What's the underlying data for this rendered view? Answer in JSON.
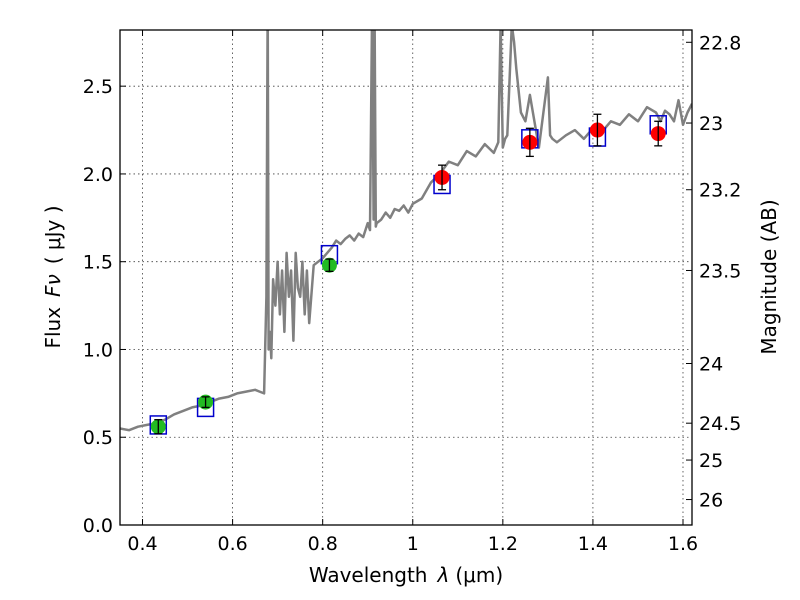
{
  "chart_data": {
    "type": "scatter",
    "title": "",
    "xlabel": "Wavelength",
    "xlabel_symbol": "λ",
    "xlabel_units": "(μm)",
    "ylabel": "Flux",
    "ylabel_symbol": "Fν",
    "ylabel_units": "( μJy )",
    "y2label": "Magnitude (AB)",
    "xlim": [
      0.35,
      1.62
    ],
    "ylim": [
      0.0,
      2.82
    ],
    "grid": true,
    "xticks": [
      0.4,
      0.6,
      0.8,
      1.0,
      1.2,
      1.4,
      1.6
    ],
    "xtick_labels": [
      "0.4",
      "0.6",
      "0.8",
      "1",
      "1.2",
      "1.4",
      "1.6"
    ],
    "yticks": [
      0.0,
      0.5,
      1.0,
      1.5,
      2.0,
      2.5
    ],
    "ytick_labels": [
      "0.0",
      "0.5",
      "1.0",
      "1.5",
      "2.0",
      "2.5"
    ],
    "y2ticks": [
      {
        "label": "22.8",
        "flux_value": 2.75
      },
      {
        "label": "23",
        "flux_value": 2.29
      },
      {
        "label": "23.2",
        "flux_value": 1.91
      },
      {
        "label": "23.5",
        "flux_value": 1.45
      },
      {
        "label": "24",
        "flux_value": 0.92
      },
      {
        "label": "24.5",
        "flux_value": 0.58
      },
      {
        "label": "25",
        "flux_value": 0.37
      },
      {
        "label": "26",
        "flux_value": 0.145
      }
    ],
    "colors": {
      "spectrum": "#808080",
      "model_box": "#0000cc",
      "optical_points": "#22bb22",
      "nir_points": "#ff0000",
      "errorbar": "#000000"
    },
    "series": [
      {
        "name": "model spectrum",
        "kind": "line",
        "x": [
          0.35,
          0.37,
          0.39,
          0.41,
          0.43,
          0.45,
          0.47,
          0.49,
          0.51,
          0.53,
          0.55,
          0.57,
          0.59,
          0.61,
          0.63,
          0.65,
          0.66,
          0.67,
          0.675,
          0.678,
          0.68,
          0.683,
          0.686,
          0.69,
          0.695,
          0.7,
          0.705,
          0.71,
          0.715,
          0.72,
          0.725,
          0.73,
          0.735,
          0.74,
          0.745,
          0.75,
          0.755,
          0.76,
          0.765,
          0.77,
          0.78,
          0.79,
          0.8,
          0.81,
          0.82,
          0.83,
          0.84,
          0.85,
          0.86,
          0.87,
          0.88,
          0.89,
          0.9,
          0.905,
          0.91,
          0.913,
          0.915,
          0.918,
          0.92,
          0.93,
          0.94,
          0.95,
          0.96,
          0.97,
          0.98,
          0.99,
          1.0,
          1.02,
          1.04,
          1.06,
          1.08,
          1.1,
          1.12,
          1.14,
          1.16,
          1.18,
          1.19,
          1.195,
          1.2,
          1.205,
          1.21,
          1.22,
          1.225,
          1.23,
          1.24,
          1.25,
          1.26,
          1.28,
          1.29,
          1.3,
          1.305,
          1.31,
          1.32,
          1.34,
          1.36,
          1.38,
          1.4,
          1.42,
          1.44,
          1.46,
          1.48,
          1.5,
          1.52,
          1.54,
          1.55,
          1.56,
          1.57,
          1.58,
          1.59,
          1.6,
          1.61,
          1.62
        ],
        "y": [
          0.55,
          0.54,
          0.56,
          0.57,
          0.58,
          0.6,
          0.63,
          0.65,
          0.67,
          0.68,
          0.7,
          0.72,
          0.73,
          0.75,
          0.76,
          0.77,
          0.76,
          0.75,
          1.3,
          3.0,
          1.0,
          1.1,
          0.95,
          1.4,
          1.25,
          1.5,
          1.2,
          1.45,
          1.1,
          1.55,
          1.3,
          1.45,
          1.05,
          1.55,
          1.35,
          1.3,
          1.5,
          1.2,
          1.45,
          1.15,
          1.48,
          1.5,
          1.52,
          1.55,
          1.58,
          1.62,
          1.6,
          1.63,
          1.65,
          1.62,
          1.66,
          1.64,
          1.72,
          1.68,
          3.0,
          1.74,
          3.0,
          1.7,
          1.72,
          1.74,
          1.78,
          1.75,
          1.8,
          1.79,
          1.82,
          1.78,
          1.83,
          1.86,
          1.95,
          2.0,
          2.07,
          2.05,
          2.13,
          2.1,
          2.17,
          2.12,
          2.18,
          2.85,
          2.15,
          2.2,
          2.22,
          2.85,
          2.75,
          2.6,
          2.35,
          2.3,
          2.45,
          2.15,
          2.35,
          2.55,
          2.22,
          2.2,
          2.18,
          2.22,
          2.25,
          2.2,
          2.26,
          2.24,
          2.3,
          2.28,
          2.34,
          2.3,
          2.38,
          2.35,
          2.3,
          2.36,
          2.34,
          2.3,
          2.42,
          2.28,
          2.35,
          2.4
        ]
      },
      {
        "name": "model photometry",
        "kind": "square",
        "x": [
          0.435,
          0.54,
          0.815,
          1.065,
          1.26,
          1.41,
          1.545
        ],
        "y": [
          0.57,
          0.67,
          1.54,
          1.94,
          2.2,
          2.21,
          2.28
        ]
      },
      {
        "name": "observed optical",
        "kind": "point",
        "x": [
          0.435,
          0.54,
          0.815
        ],
        "y": [
          0.56,
          0.7,
          1.48
        ],
        "err": [
          0.04,
          0.03,
          0.035
        ]
      },
      {
        "name": "observed near-IR",
        "kind": "point",
        "x": [
          1.065,
          1.26,
          1.41,
          1.545
        ],
        "y": [
          1.98,
          2.18,
          2.25,
          2.23
        ],
        "err": [
          0.07,
          0.08,
          0.09,
          0.07
        ]
      }
    ]
  }
}
